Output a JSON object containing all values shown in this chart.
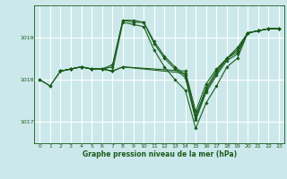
{
  "background_color": "#cce8eb",
  "grid_color": "#ffffff",
  "line_color": "#1a5c1a",
  "title": "Graphe pression niveau de la mer (hPa)",
  "xlim": [
    -0.5,
    23.5
  ],
  "ylim": [
    1016.5,
    1019.75
  ],
  "yticks": [
    1017,
    1018,
    1019
  ],
  "xticks": [
    0,
    1,
    2,
    3,
    4,
    5,
    6,
    7,
    8,
    9,
    10,
    11,
    12,
    13,
    14,
    15,
    16,
    17,
    18,
    19,
    20,
    21,
    22,
    23
  ],
  "series": [
    {
      "x": [
        0,
        1,
        2,
        3,
        4,
        5,
        6,
        7,
        8,
        9,
        10,
        11,
        12,
        13,
        14,
        15,
        16,
        17,
        18,
        19,
        20,
        21,
        22,
        23
      ],
      "y": [
        1018.0,
        1017.85,
        1018.2,
        1018.25,
        1018.3,
        1018.25,
        1018.25,
        1018.2,
        1019.35,
        1019.3,
        1019.25,
        1018.7,
        1018.3,
        1018.0,
        1017.75,
        1016.85,
        1017.45,
        1017.85,
        1018.3,
        1018.5,
        1019.1,
        1019.15,
        1019.2,
        1019.2
      ]
    },
    {
      "x": [
        0,
        1,
        2,
        3,
        4,
        5,
        6,
        7,
        8,
        9,
        10,
        11,
        12,
        13,
        14,
        15,
        16,
        17,
        18,
        19,
        20,
        21,
        22,
        23
      ],
      "y": [
        1018.0,
        1017.85,
        1018.2,
        1018.25,
        1018.3,
        1018.25,
        1018.25,
        1018.35,
        1019.4,
        1019.35,
        1019.35,
        1018.85,
        1018.5,
        1018.25,
        1018.05,
        1017.05,
        1017.7,
        1018.1,
        1018.45,
        1018.6,
        1019.1,
        1019.15,
        1019.2,
        1019.2
      ]
    },
    {
      "x": [
        2,
        3,
        4,
        5,
        6,
        7,
        8,
        9,
        10,
        11,
        12,
        13,
        14,
        15,
        16,
        17,
        18,
        19,
        20,
        21,
        22,
        23
      ],
      "y": [
        1018.2,
        1018.25,
        1018.3,
        1018.25,
        1018.25,
        1018.3,
        1019.4,
        1019.4,
        1019.35,
        1018.9,
        1018.55,
        1018.3,
        1018.1,
        1017.1,
        1017.75,
        1018.15,
        1018.5,
        1018.65,
        1019.1,
        1019.15,
        1019.2,
        1019.2
      ]
    },
    {
      "x": [
        2,
        3,
        4,
        5,
        6,
        7,
        8,
        14,
        15,
        16,
        17,
        18,
        19,
        20,
        21,
        22,
        23
      ],
      "y": [
        1018.2,
        1018.25,
        1018.3,
        1018.25,
        1018.25,
        1018.2,
        1018.3,
        1018.15,
        1017.15,
        1017.8,
        1018.2,
        1018.5,
        1018.7,
        1019.1,
        1019.15,
        1019.2,
        1019.2
      ]
    },
    {
      "x": [
        2,
        3,
        4,
        5,
        6,
        7,
        8,
        14,
        15,
        16,
        17,
        18,
        19,
        20,
        21,
        22,
        23
      ],
      "y": [
        1018.2,
        1018.25,
        1018.3,
        1018.25,
        1018.25,
        1018.2,
        1018.3,
        1018.2,
        1017.25,
        1017.9,
        1018.25,
        1018.5,
        1018.75,
        1019.1,
        1019.15,
        1019.2,
        1019.2
      ]
    }
  ]
}
